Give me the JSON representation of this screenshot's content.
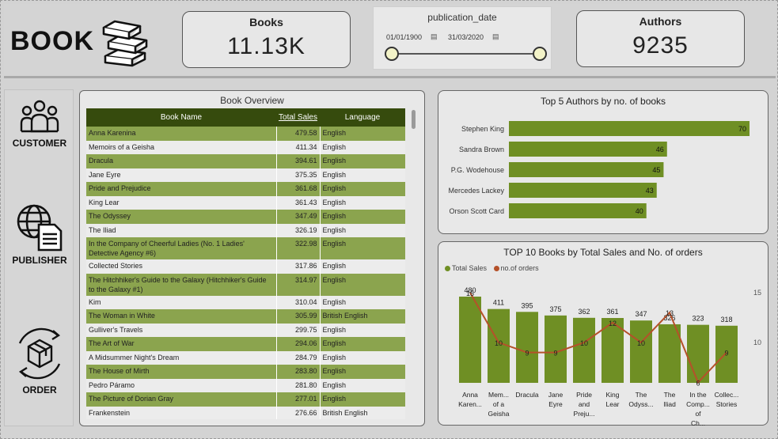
{
  "header": {
    "brand": "BOOK",
    "kpi_books": {
      "label": "Books",
      "value": "11.13K"
    },
    "kpi_authors": {
      "label": "Authors",
      "value": "9235"
    },
    "slicer": {
      "title": "publication_date",
      "start": "01/01/1900",
      "end": "31/03/2020"
    }
  },
  "sidebar": {
    "items": [
      {
        "label": "CUSTOMER",
        "icon": "people-icon"
      },
      {
        "label": "PUBLISHER",
        "icon": "globe-document-icon"
      },
      {
        "label": "ORDER",
        "icon": "box-cycle-icon"
      }
    ]
  },
  "table": {
    "title": "Book Overview",
    "columns": [
      "Book Name",
      "Total Sales",
      "Language"
    ],
    "rows": [
      [
        "Anna Karenina",
        "479.58",
        "English"
      ],
      [
        "Memoirs of a Geisha",
        "411.34",
        "English"
      ],
      [
        "Dracula",
        "394.61",
        "English"
      ],
      [
        "Jane Eyre",
        "375.35",
        "English"
      ],
      [
        "Pride and Prejudice",
        "361.68",
        "English"
      ],
      [
        "King Lear",
        "361.43",
        "English"
      ],
      [
        "The Odyssey",
        "347.49",
        "English"
      ],
      [
        "The Iliad",
        "326.19",
        "English"
      ],
      [
        "In the Company of Cheerful Ladies (No. 1 Ladies' Detective Agency #6)",
        "322.98",
        "English"
      ],
      [
        "Collected Stories",
        "317.86",
        "English"
      ],
      [
        "The Hitchhiker's Guide to the Galaxy (Hitchhiker's Guide to the Galaxy #1)",
        "314.97",
        "English"
      ],
      [
        "Kim",
        "310.04",
        "English"
      ],
      [
        "The Woman in White",
        "305.99",
        "British English"
      ],
      [
        "Gulliver's Travels",
        "299.75",
        "English"
      ],
      [
        "The Art of War",
        "294.06",
        "English"
      ],
      [
        "A Midsummer Night's Dream",
        "284.79",
        "English"
      ],
      [
        "The House of Mirth",
        "283.80",
        "English"
      ],
      [
        "Pedro Páramo",
        "281.80",
        "English"
      ],
      [
        "The Picture of Dorian Gray",
        "277.01",
        "English"
      ],
      [
        "Frankenstein",
        "276.66",
        "British English"
      ]
    ]
  },
  "colors": {
    "bar": "#6f8f24",
    "line": "#b5512a",
    "header_bg": "#364b0d",
    "row_alt": "#8ba44e"
  },
  "chart_data": [
    {
      "type": "bar",
      "title": "Top 5 Authors by no. of books",
      "orientation": "horizontal",
      "categories": [
        "Stephen King",
        "Sandra Brown",
        "P.G. Wodehouse",
        "Mercedes Lackey",
        "Orson Scott Card"
      ],
      "values": [
        70,
        46,
        45,
        43,
        40
      ],
      "xlim": [
        0,
        70
      ]
    },
    {
      "type": "bar",
      "title": "TOP 10 Books by Total Sales and No. of orders",
      "categories": [
        "Anna Karen...",
        "Mem... of a Geisha",
        "Dracula",
        "Jane Eyre",
        "Pride and Preju...",
        "King Lear",
        "The Odyss...",
        "The Iliad",
        "In the Comp... of Ch...",
        "Collec... Stories"
      ],
      "series": [
        {
          "name": "Total Sales",
          "type": "bar",
          "values": [
            480,
            411,
            395,
            375,
            362,
            361,
            347,
            326,
            323,
            318
          ]
        },
        {
          "name": "no.of orders",
          "type": "line",
          "axis": "secondary",
          "values": [
            15,
            10,
            9,
            9,
            10,
            12,
            10,
            13,
            6,
            9
          ]
        }
      ],
      "y2_ticks": [
        "15",
        "10"
      ],
      "legend": "top-left"
    }
  ]
}
